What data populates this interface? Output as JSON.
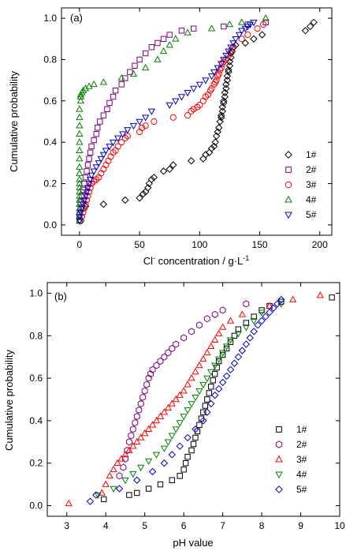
{
  "chart_data": [
    {
      "type": "scatter",
      "panel_label": "(a)",
      "xlabel_parts": [
        "Cl",
        "-",
        " concentration / g·L",
        "-1"
      ],
      "ylabel": "Cumulative probability",
      "xlim": [
        -15,
        210
      ],
      "ylim": [
        -0.05,
        1.05
      ],
      "xticks": [
        0,
        50,
        100,
        150,
        200
      ],
      "yticks": [
        0.0,
        0.2,
        0.4,
        0.6,
        0.8,
        1.0
      ],
      "xtick_labels": [
        "0",
        "50",
        "100",
        "150",
        "200"
      ],
      "ytick_labels": [
        "0.0",
        "0.2",
        "0.4",
        "0.6",
        "0.8",
        "1.0"
      ],
      "legend_position": "bottom-right",
      "series": [
        {
          "name": "1#",
          "marker": "diamond",
          "color": "#000000",
          "x": [
            1,
            5,
            20,
            38,
            50,
            53,
            55,
            57,
            58,
            60,
            62,
            70,
            75,
            78,
            93,
            103,
            105,
            108,
            110,
            112,
            113,
            114,
            115,
            116,
            117,
            118,
            118,
            119,
            119,
            120,
            120,
            121,
            121,
            122,
            122,
            123,
            123,
            124,
            124,
            125,
            125,
            126,
            126,
            127,
            128,
            130,
            138,
            145,
            152,
            188,
            192,
            195
          ],
          "y": [
            0.02,
            0.09,
            0.1,
            0.12,
            0.13,
            0.15,
            0.16,
            0.18,
            0.2,
            0.22,
            0.23,
            0.26,
            0.27,
            0.29,
            0.31,
            0.32,
            0.34,
            0.35,
            0.37,
            0.38,
            0.4,
            0.43,
            0.45,
            0.47,
            0.5,
            0.52,
            0.53,
            0.55,
            0.57,
            0.59,
            0.6,
            0.62,
            0.64,
            0.66,
            0.68,
            0.7,
            0.72,
            0.74,
            0.75,
            0.77,
            0.79,
            0.81,
            0.83,
            0.84,
            0.86,
            0.87,
            0.88,
            0.9,
            0.92,
            0.94,
            0.96,
            0.98
          ]
        },
        {
          "name": "2#",
          "marker": "square",
          "color": "#800080",
          "x": [
            0,
            0,
            1,
            1,
            2,
            3,
            4,
            5,
            6,
            7,
            8,
            9,
            10,
            12,
            14,
            15,
            17,
            20,
            23,
            25,
            28,
            30,
            35,
            38,
            42,
            46,
            50,
            55,
            60,
            65,
            70,
            75,
            85,
            95,
            120,
            140,
            155
          ],
          "y": [
            0.02,
            0.05,
            0.08,
            0.11,
            0.14,
            0.17,
            0.2,
            0.23,
            0.26,
            0.29,
            0.32,
            0.35,
            0.38,
            0.41,
            0.44,
            0.47,
            0.5,
            0.53,
            0.56,
            0.59,
            0.62,
            0.65,
            0.68,
            0.71,
            0.74,
            0.77,
            0.8,
            0.83,
            0.86,
            0.88,
            0.9,
            0.92,
            0.94,
            0.95,
            0.96,
            0.97,
            0.98
          ]
        },
        {
          "name": "3#",
          "marker": "circle",
          "color": "#ff0000",
          "x": [
            1,
            2,
            3,
            4,
            5,
            6,
            7,
            8,
            9,
            10,
            12,
            14,
            16,
            18,
            20,
            22,
            24,
            26,
            28,
            30,
            32,
            35,
            38,
            40,
            50,
            52,
            55,
            62,
            78,
            90,
            93,
            95,
            98,
            100,
            103,
            105,
            107,
            109,
            110,
            112,
            113,
            114,
            115,
            116,
            117,
            118,
            119,
            120,
            122,
            124,
            126,
            128,
            135,
            140,
            148,
            153
          ],
          "y": [
            0.02,
            0.04,
            0.06,
            0.08,
            0.1,
            0.12,
            0.14,
            0.16,
            0.18,
            0.2,
            0.21,
            0.22,
            0.23,
            0.25,
            0.27,
            0.29,
            0.31,
            0.33,
            0.35,
            0.36,
            0.38,
            0.4,
            0.42,
            0.43,
            0.45,
            0.47,
            0.48,
            0.5,
            0.52,
            0.53,
            0.55,
            0.56,
            0.57,
            0.58,
            0.6,
            0.62,
            0.63,
            0.65,
            0.66,
            0.68,
            0.69,
            0.7,
            0.72,
            0.73,
            0.75,
            0.76,
            0.78,
            0.79,
            0.8,
            0.82,
            0.84,
            0.86,
            0.9,
            0.92,
            0.95,
            0.97
          ]
        },
        {
          "name": "4#",
          "marker": "triangle-up",
          "color": "#008000",
          "x": [
            0,
            0,
            0,
            0,
            0,
            0,
            0,
            0,
            0,
            0,
            0,
            0,
            0,
            0,
            0,
            0,
            0,
            0,
            0,
            0,
            1,
            1,
            1,
            2,
            3,
            5,
            8,
            12,
            20,
            35,
            45,
            55,
            65,
            70,
            75,
            80,
            90,
            110,
            125,
            135,
            155
          ],
          "y": [
            0.02,
            0.04,
            0.06,
            0.08,
            0.1,
            0.12,
            0.14,
            0.16,
            0.18,
            0.2,
            0.22,
            0.25,
            0.28,
            0.32,
            0.36,
            0.4,
            0.44,
            0.48,
            0.52,
            0.56,
            0.6,
            0.62,
            0.63,
            0.64,
            0.65,
            0.66,
            0.67,
            0.68,
            0.69,
            0.71,
            0.73,
            0.76,
            0.8,
            0.84,
            0.87,
            0.9,
            0.93,
            0.95,
            0.97,
            0.98,
            1.0
          ]
        },
        {
          "name": "5#",
          "marker": "triangle-down",
          "color": "#0000cc",
          "x": [
            0,
            0,
            1,
            2,
            3,
            4,
            5,
            6,
            7,
            8,
            9,
            10,
            12,
            14,
            16,
            18,
            20,
            22,
            25,
            28,
            32,
            36,
            40,
            45,
            50,
            55,
            60,
            75,
            80,
            85,
            90,
            95,
            100,
            105,
            110,
            112,
            115,
            118,
            120,
            122,
            124,
            126,
            128,
            130,
            133,
            135,
            138,
            140,
            142,
            145
          ],
          "y": [
            0.02,
            0.04,
            0.06,
            0.08,
            0.1,
            0.12,
            0.14,
            0.16,
            0.18,
            0.2,
            0.22,
            0.24,
            0.26,
            0.28,
            0.3,
            0.32,
            0.34,
            0.36,
            0.38,
            0.4,
            0.42,
            0.44,
            0.46,
            0.48,
            0.5,
            0.52,
            0.55,
            0.58,
            0.6,
            0.62,
            0.64,
            0.66,
            0.68,
            0.7,
            0.72,
            0.74,
            0.76,
            0.78,
            0.8,
            0.82,
            0.84,
            0.86,
            0.88,
            0.9,
            0.92,
            0.94,
            0.95,
            0.96,
            0.97,
            0.98
          ]
        }
      ]
    },
    {
      "type": "scatter",
      "panel_label": "(b)",
      "xlabel": "pH value",
      "ylabel": "Cumulative probability",
      "xlim": [
        2.5,
        10
      ],
      "ylim": [
        -0.05,
        1.05
      ],
      "xticks": [
        3,
        4,
        5,
        6,
        7,
        8,
        9,
        10
      ],
      "yticks": [
        0.0,
        0.2,
        0.4,
        0.6,
        0.8,
        1.0
      ],
      "xtick_labels": [
        "3",
        "4",
        "5",
        "6",
        "7",
        "8",
        "9",
        "10"
      ],
      "ytick_labels": [
        "0.0",
        "0.2",
        "0.4",
        "0.6",
        "0.8",
        "1.0"
      ],
      "legend_position": "bottom-right",
      "series": [
        {
          "name": "1#",
          "marker": "square",
          "color": "#000000",
          "x": [
            3.95,
            4.6,
            4.8,
            5.1,
            5.4,
            5.7,
            5.9,
            6.0,
            6.05,
            6.1,
            6.2,
            6.25,
            6.3,
            6.35,
            6.4,
            6.45,
            6.5,
            6.55,
            6.6,
            6.65,
            6.7,
            6.75,
            6.8,
            6.85,
            6.9,
            7.0,
            7.1,
            7.2,
            7.3,
            7.4,
            7.6,
            7.8,
            8.0,
            8.2,
            8.5,
            9.8
          ],
          "y": [
            0.03,
            0.05,
            0.06,
            0.08,
            0.1,
            0.12,
            0.14,
            0.17,
            0.2,
            0.23,
            0.26,
            0.29,
            0.32,
            0.35,
            0.38,
            0.41,
            0.44,
            0.47,
            0.5,
            0.53,
            0.56,
            0.59,
            0.62,
            0.65,
            0.68,
            0.71,
            0.74,
            0.77,
            0.8,
            0.83,
            0.86,
            0.89,
            0.92,
            0.94,
            0.96,
            0.98
          ]
        },
        {
          "name": "2#",
          "marker": "hexagon",
          "color": "#800080",
          "x": [
            4.35,
            4.45,
            4.5,
            4.55,
            4.6,
            4.65,
            4.7,
            4.75,
            4.8,
            4.85,
            4.9,
            4.95,
            5.0,
            5.05,
            5.1,
            5.15,
            5.2,
            5.3,
            5.4,
            5.5,
            5.6,
            5.7,
            5.8,
            6.0,
            6.2,
            6.4,
            6.6,
            6.8,
            7.0,
            7.6
          ],
          "y": [
            0.14,
            0.18,
            0.22,
            0.26,
            0.3,
            0.33,
            0.36,
            0.39,
            0.42,
            0.45,
            0.48,
            0.51,
            0.54,
            0.57,
            0.6,
            0.62,
            0.64,
            0.66,
            0.68,
            0.7,
            0.72,
            0.74,
            0.76,
            0.79,
            0.82,
            0.85,
            0.88,
            0.9,
            0.92,
            0.95
          ]
        },
        {
          "name": "3#",
          "marker": "triangle-up",
          "color": "#ff0000",
          "x": [
            3.05,
            3.9,
            4.0,
            4.1,
            4.2,
            4.3,
            4.4,
            4.5,
            4.6,
            4.7,
            4.8,
            4.9,
            5.0,
            5.1,
            5.2,
            5.3,
            5.4,
            5.5,
            5.6,
            5.7,
            5.8,
            5.9,
            6.0,
            6.1,
            6.2,
            6.3,
            6.4,
            6.5,
            6.6,
            6.7,
            6.8,
            6.9,
            7.0,
            7.2,
            7.5,
            8.2,
            8.8,
            9.5
          ],
          "y": [
            0.01,
            0.06,
            0.1,
            0.14,
            0.17,
            0.2,
            0.22,
            0.24,
            0.26,
            0.28,
            0.3,
            0.32,
            0.34,
            0.36,
            0.38,
            0.4,
            0.42,
            0.44,
            0.46,
            0.48,
            0.5,
            0.52,
            0.54,
            0.57,
            0.6,
            0.63,
            0.66,
            0.69,
            0.72,
            0.75,
            0.78,
            0.81,
            0.84,
            0.87,
            0.9,
            0.94,
            0.97,
            0.99
          ]
        },
        {
          "name": "4#",
          "marker": "triangle-down",
          "color": "#008000",
          "x": [
            3.8,
            4.2,
            4.5,
            4.7,
            4.9,
            5.1,
            5.3,
            5.5,
            5.6,
            5.7,
            5.8,
            5.9,
            6.0,
            6.1,
            6.2,
            6.3,
            6.4,
            6.5,
            6.6,
            6.7,
            6.8,
            6.9,
            7.0,
            7.1,
            7.2,
            7.4,
            7.6,
            7.8,
            8.0,
            8.5
          ],
          "y": [
            0.05,
            0.08,
            0.12,
            0.15,
            0.18,
            0.21,
            0.24,
            0.27,
            0.3,
            0.33,
            0.36,
            0.39,
            0.42,
            0.45,
            0.48,
            0.51,
            0.54,
            0.57,
            0.6,
            0.63,
            0.66,
            0.69,
            0.72,
            0.75,
            0.78,
            0.81,
            0.84,
            0.87,
            0.91,
            0.95
          ]
        },
        {
          "name": "5#",
          "marker": "diamond",
          "color": "#0000cc",
          "x": [
            3.6,
            3.75,
            4.35,
            4.8,
            5.2,
            5.5,
            5.7,
            5.9,
            6.1,
            6.3,
            6.5,
            6.6,
            6.7,
            6.8,
            6.9,
            7.0,
            7.1,
            7.2,
            7.3,
            7.4,
            7.5,
            7.6,
            7.7,
            7.8,
            7.9,
            8.0,
            8.1,
            8.2,
            8.3,
            8.4,
            8.5
          ],
          "y": [
            0.02,
            0.05,
            0.08,
            0.12,
            0.16,
            0.2,
            0.24,
            0.28,
            0.32,
            0.36,
            0.4,
            0.44,
            0.48,
            0.52,
            0.55,
            0.58,
            0.61,
            0.64,
            0.67,
            0.7,
            0.73,
            0.76,
            0.79,
            0.82,
            0.85,
            0.87,
            0.89,
            0.91,
            0.93,
            0.95,
            0.97
          ]
        }
      ]
    }
  ]
}
